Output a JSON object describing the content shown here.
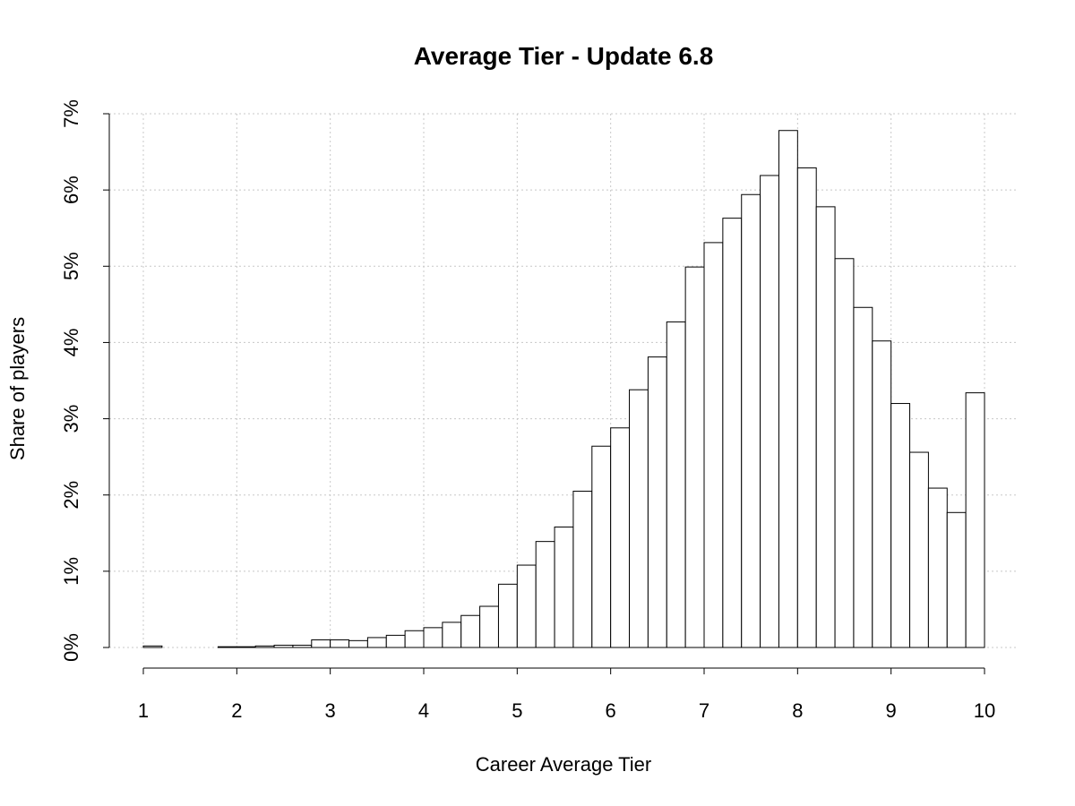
{
  "chart_data": {
    "type": "bar",
    "title": "Average Tier - Update 6.8",
    "xlabel": "Career Average Tier",
    "ylabel": "Share of players",
    "xlim": [
      1,
      10
    ],
    "ylim": [
      0,
      7
    ],
    "x_ticks": [
      "1",
      "2",
      "3",
      "4",
      "5",
      "6",
      "7",
      "8",
      "9",
      "10"
    ],
    "y_ticks": [
      "0%",
      "1%",
      "2%",
      "3%",
      "4%",
      "5%",
      "6%",
      "7%"
    ],
    "grid": true,
    "bin_width": 0.2,
    "bins_start": [
      1.0,
      1.2,
      1.4,
      1.6,
      1.8,
      2.0,
      2.2,
      2.4,
      2.6,
      2.8,
      3.0,
      3.2,
      3.4,
      3.6,
      3.8,
      4.0,
      4.2,
      4.4,
      4.6,
      4.8,
      5.0,
      5.2,
      5.4,
      5.6,
      5.8,
      6.0,
      6.2,
      6.4,
      6.6,
      6.8,
      7.0,
      7.2,
      7.4,
      7.6,
      7.8,
      8.0,
      8.2,
      8.4,
      8.6,
      8.8,
      9.0,
      9.2,
      9.4,
      9.6,
      9.8
    ],
    "values": [
      0.02,
      0.0,
      0.0,
      0.0,
      0.01,
      0.01,
      0.02,
      0.03,
      0.03,
      0.1,
      0.1,
      0.09,
      0.13,
      0.16,
      0.22,
      0.26,
      0.33,
      0.42,
      0.54,
      0.83,
      1.08,
      1.39,
      1.58,
      2.05,
      2.64,
      2.88,
      3.38,
      3.81,
      4.27,
      4.99,
      5.31,
      5.63,
      5.94,
      6.19,
      6.78,
      6.29,
      5.78,
      5.1,
      4.46,
      4.02,
      3.2,
      2.56,
      2.09,
      1.77,
      3.34
    ]
  }
}
